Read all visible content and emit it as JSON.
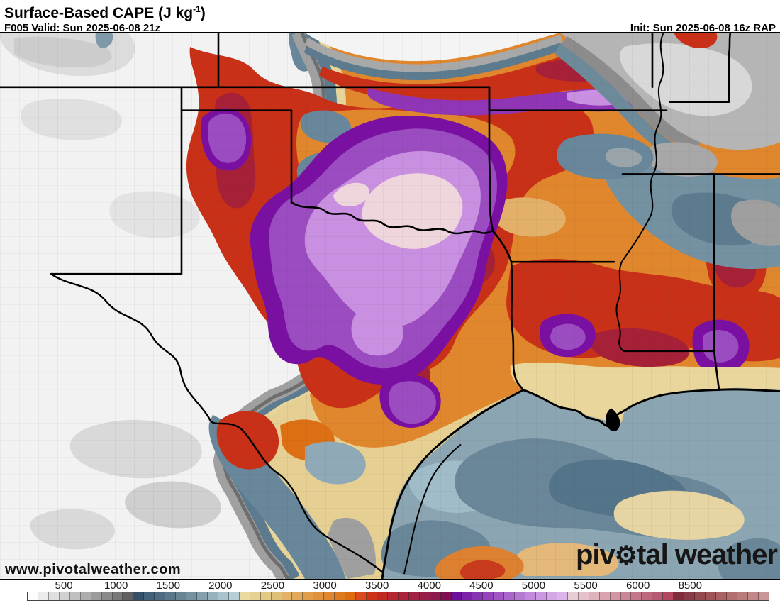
{
  "header": {
    "title_main": "Surface-Based CAPE (J kg",
    "title_sup": "-1",
    "title_end": ")",
    "valid_label": "F005 Valid: Sun 2025-06-08 21z",
    "init_label": "Init: Sun 2025-06-08 16z RAP"
  },
  "map": {
    "watermark": "www.pivotalweather.com",
    "logo_pre": "piv",
    "logo_gear": "⚙",
    "logo_post": "tal weather"
  },
  "legend": {
    "units": "J kg-1",
    "scale_values": [
      500,
      1000,
      1500,
      2000,
      2500,
      3000,
      3500,
      4000,
      4500,
      5000,
      5500,
      6000,
      8500
    ],
    "ticks": [
      {
        "label": "500",
        "pos": 4.97
      },
      {
        "label": "1000",
        "pos": 12.0
      },
      {
        "label": "1500",
        "pos": 19.03
      },
      {
        "label": "2000",
        "pos": 26.06
      },
      {
        "label": "2500",
        "pos": 33.09
      },
      {
        "label": "3000",
        "pos": 40.12
      },
      {
        "label": "3500",
        "pos": 47.15
      },
      {
        "label": "4000",
        "pos": 54.18
      },
      {
        "label": "4500",
        "pos": 61.21
      },
      {
        "label": "5000",
        "pos": 68.24
      },
      {
        "label": "5500",
        "pos": 75.27
      },
      {
        "label": "6000",
        "pos": 82.3
      },
      {
        "label": "8500",
        "pos": 89.33
      }
    ],
    "palette": [
      "#fdfdfd",
      "#ebebeb",
      "#dfdfdf",
      "#d1d1d1",
      "#c0c0c0",
      "#aeaeae",
      "#9c9c9c",
      "#8a8a8a",
      "#787878",
      "#606060",
      "#36506a",
      "#41607a",
      "#4d6b83",
      "#5a788c",
      "#688595",
      "#7692a0",
      "#86a1ad",
      "#97b2bc",
      "#a9c3cc",
      "#b6ced8",
      "#ead9a0",
      "#e7d293",
      "#e4c985",
      "#e0bf76",
      "#e3b268",
      "#e2a85a",
      "#e19d4c",
      "#e0923e",
      "#df8730",
      "#de7b21",
      "#de6d10",
      "#da4b1e",
      "#cc3318",
      "#c02a20",
      "#b52733",
      "#ab243b",
      "#a12143",
      "#971d49",
      "#8d1a4f",
      "#830f53",
      "#6b109b",
      "#7b22a8",
      "#8833b2",
      "#9544bc",
      "#a156c6",
      "#ab66cc",
      "#b678d3",
      "#c28adc",
      "#ca99e2",
      "#d4a7e8",
      "#ddb5ed",
      "#e9cdd5",
      "#e5c2cb",
      "#dfb3bd",
      "#d9a4b0",
      "#d295a3",
      "#cb8696",
      "#c4778a",
      "#bd687d",
      "#b65971",
      "#b44760",
      "#7e2d3d",
      "#8a3a46",
      "#95474f",
      "#9f5458",
      "#a96161",
      "#b26e6e",
      "#ba7b7b",
      "#c28888",
      "#ca9595"
    ]
  },
  "chart_data": {
    "type": "heatmap",
    "title": "Surface-Based CAPE (J kg-1)",
    "legend_values": [
      500,
      1000,
      1500,
      2000,
      2500,
      3000,
      3500,
      4000,
      4500,
      5000,
      5500,
      6000,
      8500
    ],
    "notes": "Filled CAPE contours over TX/OK/AR/LA/MS; maximum >4500 J/kg (pale pink core) over north-central Texas and southern Oklahoma"
  }
}
